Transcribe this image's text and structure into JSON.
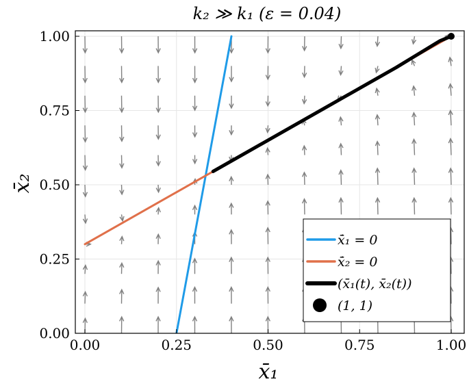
{
  "chart_data": {
    "type": "line",
    "title": "k₂ ≫ k₁ (ε = 0.04)",
    "xlabel": "x̄₁",
    "ylabel": "x̄₂",
    "xlim": [
      0,
      1
    ],
    "ylim": [
      0,
      1
    ],
    "x_ticks": [
      "0.00",
      "0.25",
      "0.50",
      "0.75",
      "1.00"
    ],
    "y_ticks": [
      "0.00",
      "0.25",
      "0.50",
      "0.75",
      "1.00"
    ],
    "grid": true,
    "legend_position": "bottom-right",
    "colors": {
      "nullcline1": "#1f9be8",
      "nullcline2": "#e0704a",
      "trajectory": "#000000",
      "field": "#808080"
    },
    "series": [
      {
        "name": "ẋ̄₁ = 0",
        "x": [
          0.25,
          0.4
        ],
        "y": [
          0.0,
          1.0
        ]
      },
      {
        "name": "ẋ̄₂ = 0",
        "x": [
          0.0,
          1.0
        ],
        "y": [
          0.3,
          1.0
        ]
      },
      {
        "name": "(x̄₁(t), x̄₂(t))",
        "x": [
          0.35,
          0.45,
          0.55,
          0.65,
          0.75,
          0.85,
          0.93,
          0.97,
          1.0
        ],
        "y": [
          0.545,
          0.615,
          0.685,
          0.755,
          0.825,
          0.895,
          0.955,
          0.985,
          1.0
        ]
      },
      {
        "name": "(1, 1)",
        "x": [
          1.0
        ],
        "y": [
          1.0
        ]
      }
    ],
    "vector_field": {
      "x": [
        0.0,
        0.1,
        0.2,
        0.3,
        0.4,
        0.5,
        0.6,
        0.7,
        0.8,
        0.9,
        1.0
      ],
      "y": [
        0.0,
        0.1,
        0.2,
        0.3,
        0.4,
        0.5,
        0.6,
        0.7,
        0.8,
        0.9,
        1.0
      ]
    }
  }
}
